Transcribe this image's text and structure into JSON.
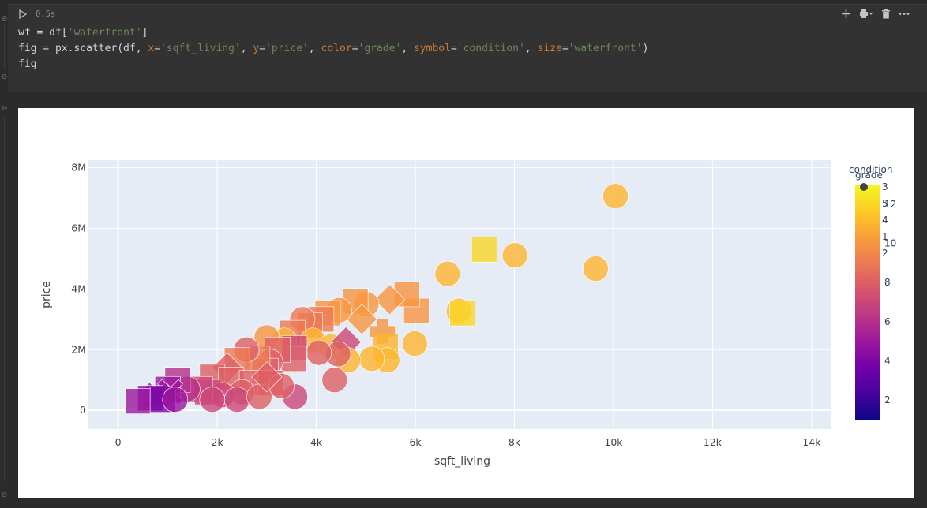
{
  "cell": {
    "run_icon": "play-icon",
    "timing": "0.5s",
    "toolbar": [
      "plus-icon",
      "printer-icon",
      "chevron-down-icon",
      "trash-icon",
      "more-icon"
    ],
    "code_lines": [
      [
        {
          "t": "wf = df[",
          "c": "op"
        },
        {
          "t": "'waterfront'",
          "c": "str"
        },
        {
          "t": "]",
          "c": "op"
        }
      ],
      [
        {
          "t": "fig = px.scatter(df, ",
          "c": "op"
        },
        {
          "t": "x",
          "c": "kw"
        },
        {
          "t": "=",
          "c": "op"
        },
        {
          "t": "'sqft_living'",
          "c": "str"
        },
        {
          "t": ", ",
          "c": "op"
        },
        {
          "t": "y",
          "c": "kw"
        },
        {
          "t": "=",
          "c": "op"
        },
        {
          "t": "'price'",
          "c": "str"
        },
        {
          "t": ", ",
          "c": "op"
        },
        {
          "t": "color",
          "c": "kw"
        },
        {
          "t": "=",
          "c": "op"
        },
        {
          "t": "'grade'",
          "c": "str"
        },
        {
          "t": ", ",
          "c": "op"
        },
        {
          "t": "symbol",
          "c": "kw"
        },
        {
          "t": "=",
          "c": "op"
        },
        {
          "t": "'condition'",
          "c": "str"
        },
        {
          "t": ", ",
          "c": "op"
        },
        {
          "t": "size",
          "c": "kw"
        },
        {
          "t": "=",
          "c": "op"
        },
        {
          "t": "'waterfront'",
          "c": "str"
        },
        {
          "t": ")",
          "c": "op"
        }
      ],
      [
        {
          "t": "fig",
          "c": "op"
        }
      ]
    ]
  },
  "chart_data": {
    "type": "scatter",
    "xlabel": "sqft_living",
    "ylabel": "price",
    "xlim": [
      -600,
      14400
    ],
    "ylim": [
      -620000,
      8250000
    ],
    "x_ticks": [
      {
        "v": 0,
        "label": "0"
      },
      {
        "v": 2000,
        "label": "2k"
      },
      {
        "v": 4000,
        "label": "4k"
      },
      {
        "v": 6000,
        "label": "6k"
      },
      {
        "v": 8000,
        "label": "8k"
      },
      {
        "v": 10000,
        "label": "10k"
      },
      {
        "v": 12000,
        "label": "12k"
      },
      {
        "v": 14000,
        "label": "14k"
      }
    ],
    "y_ticks": [
      {
        "v": 0,
        "label": "0"
      },
      {
        "v": 2000000,
        "label": "2M"
      },
      {
        "v": 4000000,
        "label": "4M"
      },
      {
        "v": 6000000,
        "label": "6M"
      },
      {
        "v": 8000000,
        "label": "8M"
      }
    ],
    "grid": true,
    "legend_title": "condition",
    "legend_items": [
      "3",
      "5",
      "4",
      "1",
      "2"
    ],
    "colorbar": {
      "title": "grade",
      "range": [
        1,
        13
      ],
      "ticks": [
        {
          "v": 2,
          "label": "2"
        },
        {
          "v": 4,
          "label": "4"
        },
        {
          "v": 6,
          "label": "6"
        },
        {
          "v": 8,
          "label": "8"
        },
        {
          "v": 10,
          "label": "10"
        },
        {
          "v": 12,
          "label": "12"
        }
      ],
      "colorscale": [
        "#0d0887",
        "#46039f",
        "#7201a8",
        "#9c179e",
        "#bd3786",
        "#d8576b",
        "#ed7953",
        "#fb9f3a",
        "#fdca26",
        "#f0f921"
      ]
    },
    "points": [
      {
        "x": 10040,
        "y": 7060000,
        "grade": 11,
        "symbol": "circle"
      },
      {
        "x": 9640,
        "y": 4670000,
        "grade": 11,
        "symbol": "circle"
      },
      {
        "x": 8010,
        "y": 5110000,
        "grade": 11,
        "symbol": "circle"
      },
      {
        "x": 7390,
        "y": 5300000,
        "grade": 12,
        "symbol": "square"
      },
      {
        "x": 6650,
        "y": 4500000,
        "grade": 11,
        "symbol": "circle"
      },
      {
        "x": 6880,
        "y": 3280000,
        "grade": 11,
        "symbol": "circle"
      },
      {
        "x": 6950,
        "y": 3200000,
        "grade": 12,
        "symbol": "square"
      },
      {
        "x": 6020,
        "y": 3280000,
        "grade": 10,
        "symbol": "square"
      },
      {
        "x": 5830,
        "y": 3830000,
        "grade": 10,
        "symbol": "square"
      },
      {
        "x": 5480,
        "y": 3650000,
        "grade": 10,
        "symbol": "diamond"
      },
      {
        "x": 5010,
        "y": 3500000,
        "grade": 10,
        "symbol": "circle"
      },
      {
        "x": 4790,
        "y": 3600000,
        "grade": 10,
        "symbol": "square"
      },
      {
        "x": 4920,
        "y": 3000000,
        "grade": 10,
        "symbol": "diamond"
      },
      {
        "x": 4460,
        "y": 3300000,
        "grade": 10,
        "symbol": "circle"
      },
      {
        "x": 4230,
        "y": 3200000,
        "grade": 10,
        "symbol": "square"
      },
      {
        "x": 4100,
        "y": 3000000,
        "grade": 9,
        "symbol": "square"
      },
      {
        "x": 3870,
        "y": 2800000,
        "grade": 9,
        "symbol": "square"
      },
      {
        "x": 3720,
        "y": 3000000,
        "grade": 9,
        "symbol": "circle"
      },
      {
        "x": 3520,
        "y": 2550000,
        "grade": 9,
        "symbol": "square"
      },
      {
        "x": 3350,
        "y": 2300000,
        "grade": 11,
        "symbol": "circle"
      },
      {
        "x": 3000,
        "y": 2400000,
        "grade": 10,
        "symbol": "circle"
      },
      {
        "x": 3930,
        "y": 2300000,
        "grade": 11,
        "symbol": "circle"
      },
      {
        "x": 4300,
        "y": 2100000,
        "grade": 11,
        "symbol": "circle"
      },
      {
        "x": 4600,
        "y": 2250000,
        "grade": 7,
        "symbol": "diamond"
      },
      {
        "x": 5340,
        "y": 2600000,
        "grade": 10,
        "symbol": "cross"
      },
      {
        "x": 5400,
        "y": 2100000,
        "grade": 11,
        "symbol": "square"
      },
      {
        "x": 5990,
        "y": 2200000,
        "grade": 11,
        "symbol": "circle"
      },
      {
        "x": 5430,
        "y": 1650000,
        "grade": 11,
        "symbol": "circle"
      },
      {
        "x": 5120,
        "y": 1700000,
        "grade": 11,
        "symbol": "circle"
      },
      {
        "x": 4640,
        "y": 1650000,
        "grade": 11,
        "symbol": "circle"
      },
      {
        "x": 4440,
        "y": 1850000,
        "grade": 8,
        "symbol": "circle"
      },
      {
        "x": 4050,
        "y": 1900000,
        "grade": 8,
        "symbol": "circle"
      },
      {
        "x": 4370,
        "y": 1000000,
        "grade": 8,
        "symbol": "circle"
      },
      {
        "x": 3570,
        "y": 450000,
        "grade": 7,
        "symbol": "circle"
      },
      {
        "x": 3560,
        "y": 2050000,
        "grade": 7,
        "symbol": "square"
      },
      {
        "x": 3550,
        "y": 1700000,
        "grade": 8,
        "symbol": "square"
      },
      {
        "x": 3220,
        "y": 2000000,
        "grade": 8,
        "symbol": "square"
      },
      {
        "x": 3070,
        "y": 1600000,
        "grade": 8,
        "symbol": "circle"
      },
      {
        "x": 2980,
        "y": 1300000,
        "grade": 8,
        "symbol": "square"
      },
      {
        "x": 2810,
        "y": 1700000,
        "grade": 9,
        "symbol": "square"
      },
      {
        "x": 2590,
        "y": 2000000,
        "grade": 8,
        "symbol": "circle"
      },
      {
        "x": 2400,
        "y": 1650000,
        "grade": 9,
        "symbol": "square"
      },
      {
        "x": 2200,
        "y": 1400000,
        "grade": 8,
        "symbol": "diamond"
      },
      {
        "x": 1900,
        "y": 1100000,
        "grade": 8,
        "symbol": "square"
      },
      {
        "x": 2280,
        "y": 1000000,
        "grade": 8,
        "symbol": "square"
      },
      {
        "x": 2700,
        "y": 900000,
        "grade": 8,
        "symbol": "square"
      },
      {
        "x": 3080,
        "y": 900000,
        "grade": 8,
        "symbol": "square"
      },
      {
        "x": 2500,
        "y": 600000,
        "grade": 8,
        "symbol": "circle"
      },
      {
        "x": 2100,
        "y": 500000,
        "grade": 7,
        "symbol": "circle"
      },
      {
        "x": 1800,
        "y": 600000,
        "grade": 7,
        "symbol": "square"
      },
      {
        "x": 1650,
        "y": 700000,
        "grade": 7,
        "symbol": "square"
      },
      {
        "x": 1400,
        "y": 700000,
        "grade": 6,
        "symbol": "circle"
      },
      {
        "x": 1200,
        "y": 1000000,
        "grade": 6,
        "symbol": "square"
      },
      {
        "x": 1000,
        "y": 700000,
        "grade": 5,
        "symbol": "square"
      },
      {
        "x": 800,
        "y": 500000,
        "grade": 5,
        "symbol": "x"
      },
      {
        "x": 1050,
        "y": 600000,
        "grade": 5,
        "symbol": "x"
      },
      {
        "x": 650,
        "y": 400000,
        "grade": 4,
        "symbol": "square"
      },
      {
        "x": 400,
        "y": 300000,
        "grade": 5,
        "symbol": "square"
      },
      {
        "x": 900,
        "y": 350000,
        "grade": 4,
        "symbol": "square"
      },
      {
        "x": 1150,
        "y": 350000,
        "grade": 5,
        "symbol": "circle"
      },
      {
        "x": 1900,
        "y": 350000,
        "grade": 7,
        "symbol": "circle"
      },
      {
        "x": 2400,
        "y": 350000,
        "grade": 7,
        "symbol": "circle"
      },
      {
        "x": 2850,
        "y": 450000,
        "grade": 8,
        "symbol": "circle"
      },
      {
        "x": 3300,
        "y": 800000,
        "grade": 8,
        "symbol": "circle"
      },
      {
        "x": 3000,
        "y": 1100000,
        "grade": 8,
        "symbol": "diamond"
      }
    ]
  }
}
